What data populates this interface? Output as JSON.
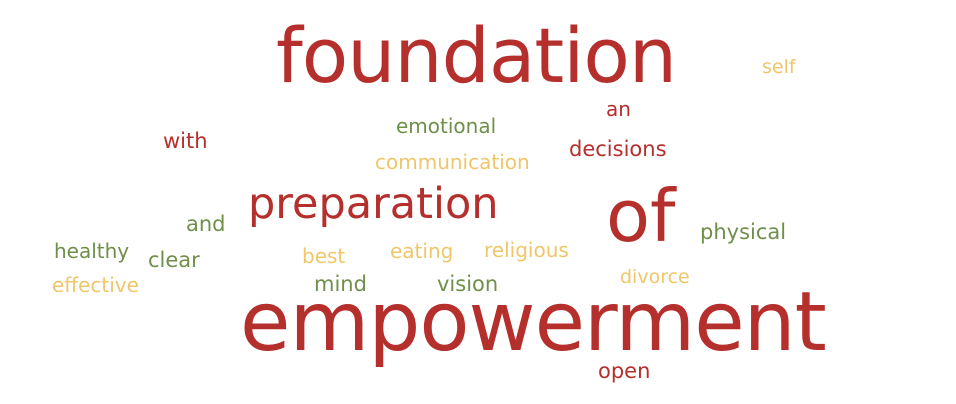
{
  "word_cloud": {
    "palette": {
      "red": "#b52f2c",
      "green": "#6f8f4a",
      "yellow": "#efc66a"
    },
    "words": {
      "foundation": "foundation",
      "self": "self",
      "an": "an",
      "emotional": "emotional",
      "with": "with",
      "decisions": "decisions",
      "communication": "communication",
      "preparation": "preparation",
      "of": "of",
      "and": "and",
      "physical": "physical",
      "healthy": "healthy",
      "best": "best",
      "eating": "eating",
      "religious": "religious",
      "clear": "clear",
      "divorce": "divorce",
      "effective": "effective",
      "mind": "mind",
      "vision": "vision",
      "empowerment": "empowerment",
      "open": "open"
    }
  }
}
